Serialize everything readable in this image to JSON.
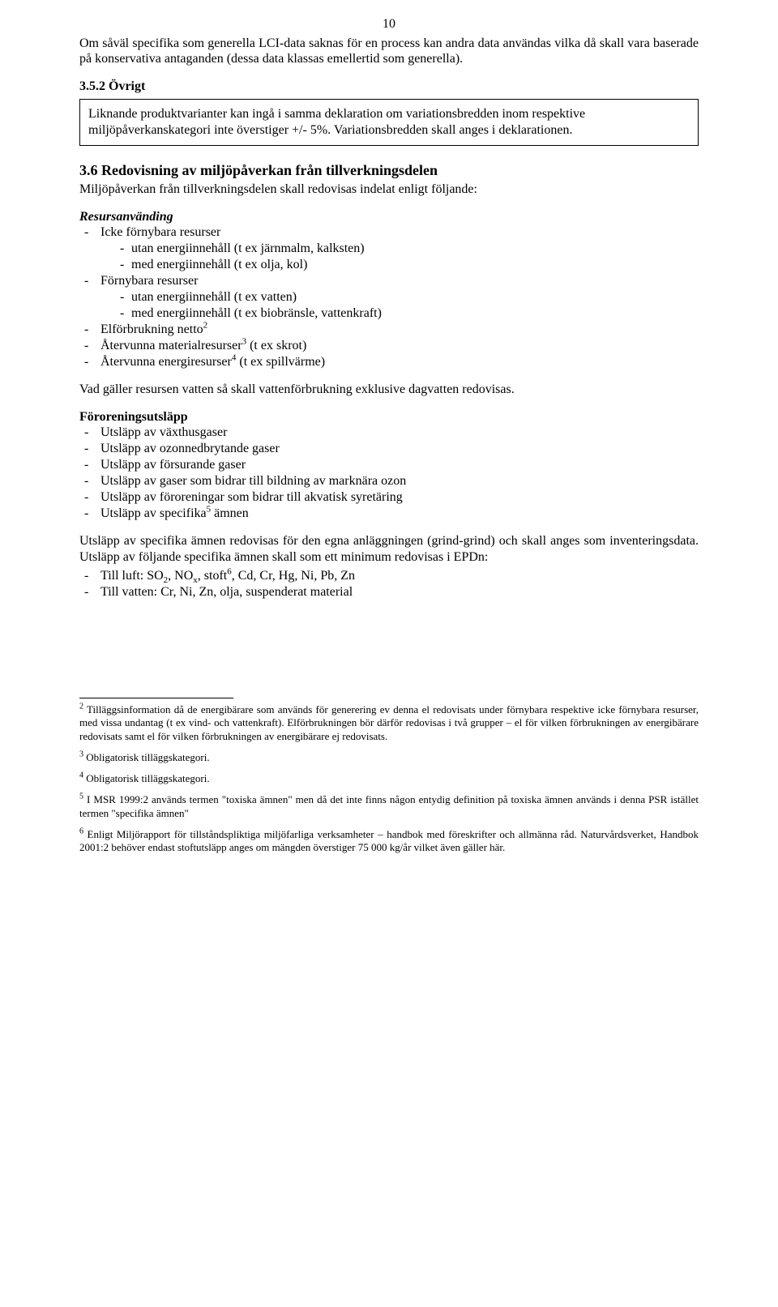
{
  "pageNumber": "10",
  "intro": "Om såväl specifika som generella LCI-data saknas för en process kan andra data användas vilka då skall vara baserade på konservativa antaganden (dessa data klassas emellertid som generella).",
  "sec352": {
    "heading": "3.5.2 Övrigt",
    "box": "Liknande produktvarianter kan ingå i samma deklaration om variationsbredden inom respektive miljöpåverkanskategori inte överstiger +/- 5%. Variationsbredden skall anges i deklarationen."
  },
  "sec36": {
    "heading": "3.6  Redovisning av miljöpåverkan från tillverkningsdelen",
    "lead": "Miljöpåverkan från tillverkningsdelen skall redovisas indelat enligt följande:",
    "resHead": "Resursanvänding",
    "res": {
      "i1": "Icke förnybara resurser",
      "i1a": "utan energiinnehåll (t ex järnmalm, kalksten)",
      "i1b": "med energiinnehåll (t ex olja, kol)",
      "i2": "Förnybara resurser",
      "i2a": "utan energiinnehåll (t ex vatten)",
      "i2b": "med energiinnehåll (t ex biobränsle, vattenkraft)",
      "i3a": "Elförbrukning netto",
      "i4a": "Återvunna materialresurser",
      "i4b": " (t ex skrot)",
      "i5a": "Återvunna energiresurser",
      "i5b": " (t ex spillvärme)"
    },
    "waterNote": "Vad gäller resursen vatten så skall vattenförbrukning exklusive dagvatten redovisas.",
    "polHead": "Föroreningsutsläpp",
    "pol": {
      "p1": "Utsläpp av växthusgaser",
      "p2": "Utsläpp av ozonnedbrytande gaser",
      "p3": "Utsläpp av försurande gaser",
      "p4": "Utsläpp av gaser som bidrar till bildning av marknära ozon",
      "p5": "Utsläpp av föroreningar som bidrar till akvatisk syretäring",
      "p6a": "Utsläpp av specifika",
      "p6b": " ämnen"
    },
    "specPara": "Utsläpp av specifika ämnen redovisas för den egna anläggningen (grind-grind) och skall anges som inventeringsdata. Utsläpp av följande specifika ämnen skall som ett minimum redovisas i EPDn:",
    "air1": "Till luft: SO",
    "air2": ", NO",
    "air3": ", stoft",
    "air4": ", Cd, Cr, Hg, Ni, Pb, Zn",
    "water": "Till vatten: Cr, Ni, Zn, olja, suspenderat material"
  },
  "footnotes": {
    "f2": " Tilläggsinformation då de energibärare som används för generering ev denna el redovisats under förnybara respektive icke förnybara resurser, med vissa undantag (t ex vind- och vattenkraft). Elförbrukningen bör därför redovisas i två grupper – el för vilken förbrukningen av energibärare redovisats samt el för vilken förbrukningen av energibärare ej redovisats.",
    "f3": " Obligatorisk tilläggskategori.",
    "f4": " Obligatorisk tilläggskategori.",
    "f5": " I MSR 1999:2 används termen \"toxiska ämnen\" men då det inte finns någon entydig definition på toxiska ämnen används i denna PSR istället termen \"specifika ämnen\"",
    "f6": " Enligt Miljörapport för tillståndspliktiga miljöfarliga verksamheter – handbok med föreskrifter och allmänna råd. Naturvårdsverket, Handbok 2001:2 behöver endast stoftutsläpp anges om mängden överstiger 75 000 kg/år vilket även gäller här."
  }
}
